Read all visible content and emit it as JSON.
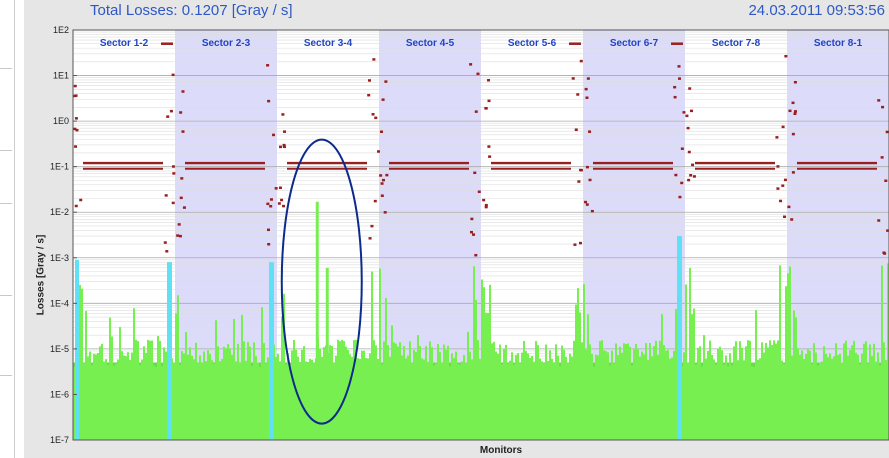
{
  "header": {
    "title": "Total Losses: 0.1207 [Gray / s]",
    "timestamp": "24.03.2011 09:53:56"
  },
  "chart_data": {
    "type": "bar",
    "title": "Total Losses: 0.1207 [Gray / s]",
    "xlabel": "Monitors",
    "ylabel": "Losses [Gray / s]",
    "yscale": "log",
    "ylim": [
      1e-07,
      100
    ],
    "ytick_labels": [
      "1E2",
      "1E1",
      "1E0",
      "1E-1",
      "1E-2",
      "1E-3",
      "1E-4",
      "1E-5",
      "1E-6",
      "1E-7"
    ],
    "sectors": [
      "Sector 1-2",
      "Sector 2-3",
      "Sector 3-4",
      "Sector 4-5",
      "Sector 5-6",
      "Sector 6-7",
      "Sector 7-8",
      "Sector 8-1"
    ],
    "sector_shading": [
      "white",
      "lavender",
      "white",
      "lavender",
      "white",
      "lavender",
      "white",
      "lavender"
    ],
    "threshold_level": 0.12,
    "peak_loss": 0.017,
    "peak_sector": "Sector 3-4",
    "annotation": "ellipse around loss spike in Sector 3-4",
    "grid": true,
    "colors": {
      "losses": "#77ef50",
      "fill": "#66dd44",
      "cyan_monitors": "#5ee0f5",
      "threshold_marks": "#9a2020",
      "sector_label": "#1f44c4",
      "shade": "#dcdcfa",
      "annotation": "#0d2a8c",
      "title": "#2f58c6"
    }
  }
}
